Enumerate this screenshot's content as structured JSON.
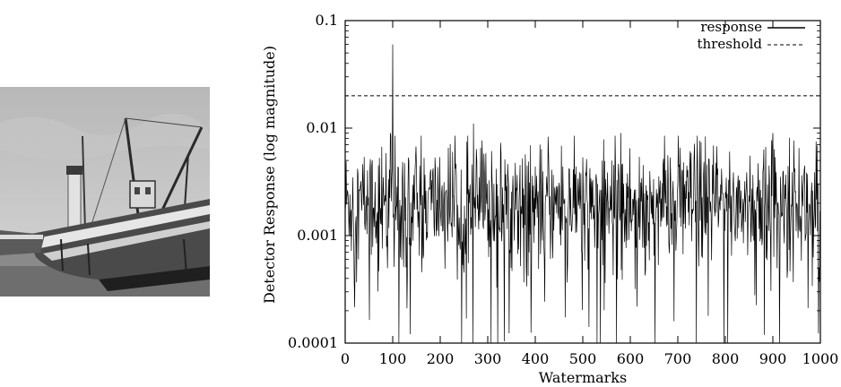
{
  "image": {
    "subject": "boat-photo"
  },
  "chart_data": {
    "type": "line",
    "title": "",
    "xlabel": "Watermarks",
    "ylabel": "Detector Response (log magnitude)",
    "xlim": [
      0,
      1000
    ],
    "ylim": [
      0.0001,
      0.1
    ],
    "y_scale": "log",
    "x_ticks": [
      "0",
      "100",
      "200",
      "300",
      "400",
      "500",
      "600",
      "700",
      "800",
      "900",
      "1000"
    ],
    "y_ticks": [
      "0.0001",
      "0.001",
      "0.01",
      "0.1"
    ],
    "legend_position": "top-right",
    "series": [
      {
        "name": "response",
        "style": "solid",
        "baseline": 0.002,
        "peaks": [
          {
            "x": 100,
            "y": 0.06
          },
          {
            "x": 270,
            "y": 0.011
          },
          {
            "x": 95,
            "y": 0.009
          },
          {
            "x": 580,
            "y": 0.009
          },
          {
            "x": 900,
            "y": 0.009
          }
        ]
      },
      {
        "name": "threshold",
        "style": "dashed",
        "y": 0.02
      }
    ]
  }
}
